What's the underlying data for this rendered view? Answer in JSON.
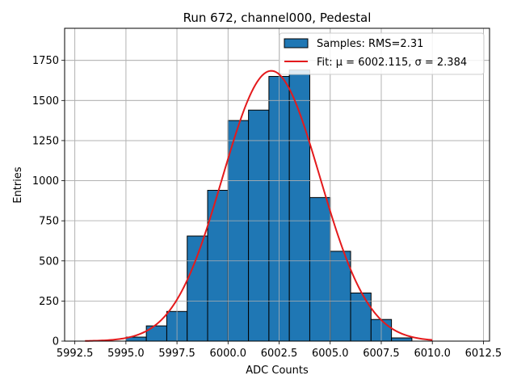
{
  "chart_data": {
    "type": "bar",
    "title": "Run 672, channel000, Pedestal",
    "xlabel": "ADC Counts",
    "ylabel": "Entries",
    "xlim": [
      5992.0,
      6012.8
    ],
    "ylim": [
      0,
      1950
    ],
    "grid": true,
    "legend_position": "top-right",
    "x_ticks": [
      5992.5,
      5995.0,
      5997.5,
      6000.0,
      6002.5,
      6005.0,
      6007.5,
      6010.0,
      6012.5
    ],
    "x_tick_labels": [
      "5992.5",
      "5995.0",
      "5997.5",
      "6000.0",
      "6002.5",
      "6005.0",
      "6007.5",
      "6010.0",
      "6012.5"
    ],
    "y_ticks": [
      0,
      250,
      500,
      750,
      1000,
      1250,
      1500,
      1750
    ],
    "y_tick_labels": [
      "0",
      "250",
      "500",
      "750",
      "1000",
      "1250",
      "1500",
      "1750"
    ],
    "bin_edges": [
      5995,
      5996,
      5997,
      5998,
      5999,
      6000,
      6001,
      6002,
      6003,
      6004,
      6005,
      6006,
      6007,
      6008,
      6009
    ],
    "counts": [
      25,
      95,
      185,
      655,
      940,
      1375,
      1440,
      1650,
      1690,
      895,
      560,
      300,
      135,
      20
    ],
    "series": [
      {
        "name": "Samples: RMS=2.31",
        "kind": "histogram",
        "color": "#1f77b4",
        "edgecolor": "#000000"
      },
      {
        "name": "Fit:",
        "kind": "gaussian_fit",
        "color": "#e41a1c",
        "mu": 6002.115,
        "sigma": 2.384,
        "x_range": [
          5993,
          6010
        ],
        "peak": 1685
      }
    ],
    "legend": [
      {
        "prefix": "Samples: RMS=2.31",
        "mu_label": "",
        "sigma_label": ""
      },
      {
        "prefix": "Fit: ",
        "mu_label": "μ = 6002.115, ",
        "sigma_label": "σ = 2.384"
      }
    ]
  }
}
